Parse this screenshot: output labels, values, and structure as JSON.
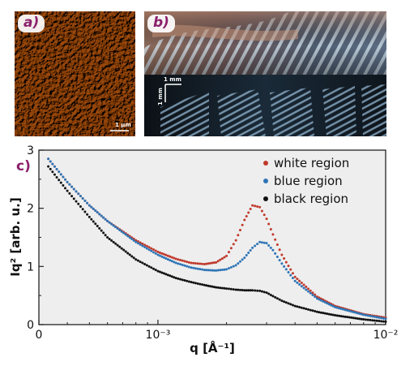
{
  "panels": {
    "a": {
      "label": "a)",
      "scale_text": "1 µm"
    },
    "b": {
      "label": "b)",
      "scale_x_text": "1 mm",
      "scale_y_text": "1 mm"
    },
    "c": {
      "label": "c)"
    }
  },
  "colors": {
    "white_region": "#c0392b",
    "blue_region": "#2e75b6",
    "black_region": "#111111",
    "panel_label": "#8b1f6b",
    "afm_brown": "#a0601e"
  },
  "chart_data": {
    "type": "scatter",
    "xlabel": "q [Å⁻¹]",
    "ylabel": "Iq² [arb. u.]",
    "xscale": "log",
    "xlim": [
      0.0003,
      0.01
    ],
    "ylim": [
      0,
      3
    ],
    "x_ticks": [
      {
        "value": 0.0003,
        "label": "0"
      },
      {
        "value": 0.001,
        "label": "10⁻³"
      },
      {
        "value": 0.01,
        "label": "10⁻²"
      }
    ],
    "y_ticks": [
      0,
      1,
      2,
      3
    ],
    "legend_position": "top-right",
    "grid": false,
    "series": [
      {
        "name": "white region",
        "color": "#c0392b",
        "x": [
          0.00033,
          0.0004,
          0.0005,
          0.0006,
          0.0008,
          0.001,
          0.0012,
          0.0014,
          0.0016,
          0.0018,
          0.002,
          0.0022,
          0.0024,
          0.0026,
          0.0028,
          0.003,
          0.0032,
          0.0035,
          0.004,
          0.005,
          0.006,
          0.008,
          0.01
        ],
        "y": [
          2.85,
          2.45,
          2.05,
          1.78,
          1.45,
          1.25,
          1.13,
          1.06,
          1.04,
          1.07,
          1.18,
          1.45,
          1.8,
          2.05,
          2.02,
          1.82,
          1.55,
          1.2,
          0.82,
          0.48,
          0.32,
          0.18,
          0.12
        ]
      },
      {
        "name": "blue region",
        "color": "#2e75b6",
        "x": [
          0.00033,
          0.0004,
          0.0005,
          0.0006,
          0.0008,
          0.001,
          0.0012,
          0.0014,
          0.0016,
          0.0018,
          0.002,
          0.0022,
          0.0024,
          0.0026,
          0.0028,
          0.003,
          0.0032,
          0.0035,
          0.004,
          0.005,
          0.006,
          0.008,
          0.01
        ],
        "y": [
          2.85,
          2.45,
          2.05,
          1.78,
          1.42,
          1.2,
          1.06,
          0.98,
          0.94,
          0.93,
          0.95,
          1.02,
          1.15,
          1.32,
          1.42,
          1.4,
          1.28,
          1.05,
          0.75,
          0.45,
          0.3,
          0.17,
          0.1
        ]
      },
      {
        "name": "black region",
        "color": "#111111",
        "x": [
          0.00033,
          0.0004,
          0.0005,
          0.0006,
          0.0008,
          0.001,
          0.0012,
          0.0014,
          0.0016,
          0.0018,
          0.002,
          0.0022,
          0.0024,
          0.0026,
          0.0028,
          0.003,
          0.0032,
          0.0035,
          0.004,
          0.005,
          0.006,
          0.008,
          0.01
        ],
        "y": [
          2.72,
          2.3,
          1.85,
          1.5,
          1.12,
          0.92,
          0.8,
          0.73,
          0.68,
          0.64,
          0.62,
          0.6,
          0.59,
          0.59,
          0.58,
          0.55,
          0.49,
          0.41,
          0.32,
          0.22,
          0.16,
          0.09,
          0.05
        ]
      }
    ]
  }
}
